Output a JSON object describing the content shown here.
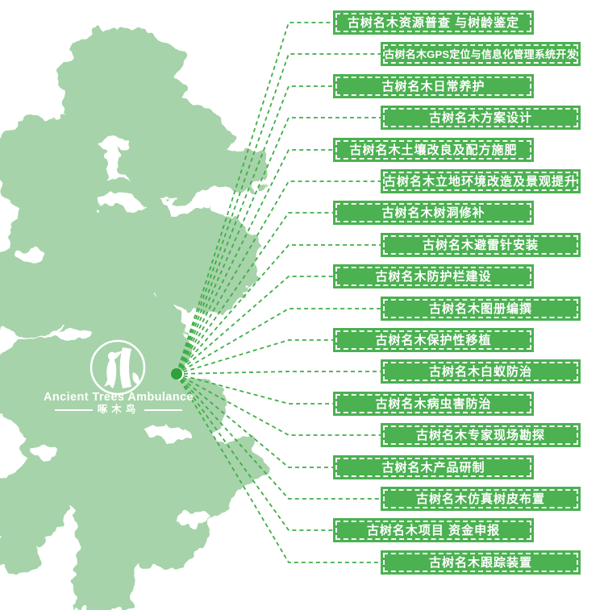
{
  "page": {
    "background": "#ffffff"
  },
  "logo": {
    "brand_en": "Ancient Trees Ambulance",
    "brand_zh": "啄木鸟",
    "icon": "woodpecker-on-trunk-icon"
  },
  "tree": {
    "icon": "ancient-tree-silhouette"
  },
  "services": [
    "古树名木资源普查 与树龄鉴定",
    "古树名木GPS定位与信息化管理系统开发",
    "古树名木日常养护",
    "古树名木方案设计",
    "古树名木土壤改良及配方施肥",
    "古树名木立地环境改造及景观提升",
    "古树名木树洞修补",
    "古树名木避雷针安装",
    "古树名木防护栏建设",
    "古树名木图册编撰",
    "古树名木保护性移植",
    "古树名木白蚁防治",
    "古树名木病虫害防治",
    "古树名木专家现场勘探",
    "古树名木产品研制",
    "古树名木仿真树皮布置",
    "古树名木项目 资金申报",
    "古树名木跟踪装置"
  ],
  "colors": {
    "banner_green": "#4bb151",
    "line_green": "#3fae47",
    "tree_green": "#a6d3a9",
    "dot_green": "#2ea13b",
    "text_white": "#ffffff"
  }
}
